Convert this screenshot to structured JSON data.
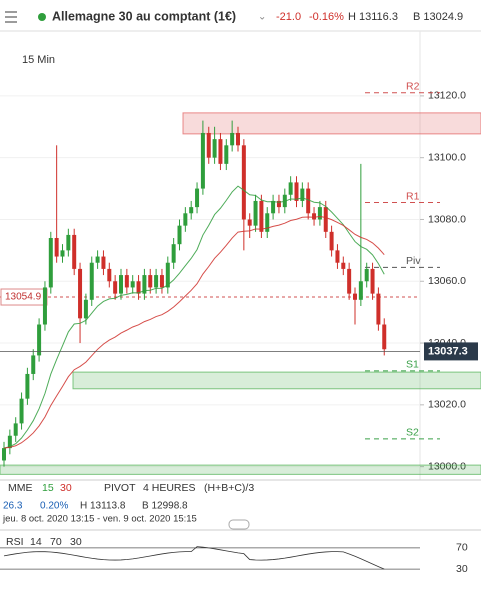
{
  "header": {
    "title": "Allemagne 30 au comptant (1€)",
    "change": "-21.0",
    "change_pct": "-0.16%",
    "high": "H 13116.3",
    "low": "B 13024.9"
  },
  "chart_data": {
    "type": "candlestick",
    "timeframe": "15 Min",
    "ohlc": [
      [
        13002,
        13008,
        13000,
        13006
      ],
      [
        13006,
        13012,
        13004,
        13010
      ],
      [
        13010,
        13016,
        13008,
        13014
      ],
      [
        13014,
        13024,
        13012,
        13022
      ],
      [
        13022,
        13032,
        13020,
        13030
      ],
      [
        13030,
        13038,
        13028,
        13036
      ],
      [
        13036,
        13048,
        13034,
        13046
      ],
      [
        13046,
        13060,
        13044,
        13058
      ],
      [
        13058,
        13076,
        13056,
        13074
      ],
      [
        13074,
        13104,
        13066,
        13068
      ],
      [
        13068,
        13072,
        13066,
        13070
      ],
      [
        13070,
        13077,
        13068,
        13075
      ],
      [
        13075,
        13077,
        13062,
        13064
      ],
      [
        13064,
        13066,
        13040,
        13048
      ],
      [
        13048,
        13056,
        13046,
        13054
      ],
      [
        13054,
        13068,
        13052,
        13066
      ],
      [
        13066,
        13070,
        13064,
        13068
      ],
      [
        13068,
        13070,
        13062,
        13064
      ],
      [
        13064,
        13066,
        13058,
        13060
      ],
      [
        13060,
        13062,
        13054,
        13056
      ],
      [
        13056,
        13064,
        13054,
        13062
      ],
      [
        13062,
        13064,
        13056,
        13058
      ],
      [
        13058,
        13062,
        13056,
        13060
      ],
      [
        13060,
        13062,
        13054,
        13056
      ],
      [
        13056,
        13064,
        13054,
        13062
      ],
      [
        13062,
        13064,
        13056,
        13058
      ],
      [
        13058,
        13064,
        13056,
        13062
      ],
      [
        13062,
        13064,
        13056,
        13058
      ],
      [
        13058,
        13068,
        13056,
        13066
      ],
      [
        13066,
        13074,
        13064,
        13072
      ],
      [
        13072,
        13080,
        13070,
        13078
      ],
      [
        13078,
        13084,
        13076,
        13082
      ],
      [
        13082,
        13086,
        13080,
        13084
      ],
      [
        13084,
        13092,
        13082,
        13090
      ],
      [
        13090,
        13112,
        13088,
        13108
      ],
      [
        13108,
        13110,
        13098,
        13100
      ],
      [
        13100,
        13110,
        13098,
        13106
      ],
      [
        13106,
        13108,
        13096,
        13098
      ],
      [
        13098,
        13106,
        13096,
        13104
      ],
      [
        13104,
        13112,
        13102,
        13108
      ],
      [
        13108,
        13110,
        13102,
        13104
      ],
      [
        13104,
        13106,
        13070,
        13080
      ],
      [
        13080,
        13082,
        13074,
        13078
      ],
      [
        13078,
        13088,
        13076,
        13086
      ],
      [
        13086,
        13088,
        13074,
        13076
      ],
      [
        13076,
        13084,
        13074,
        13082
      ],
      [
        13082,
        13088,
        13080,
        13086
      ],
      [
        13086,
        13088,
        13082,
        13084
      ],
      [
        13084,
        13090,
        13082,
        13088
      ],
      [
        13088,
        13094,
        13086,
        13092
      ],
      [
        13092,
        13094,
        13084,
        13086
      ],
      [
        13086,
        13092,
        13084,
        13090
      ],
      [
        13090,
        13092,
        13080,
        13082
      ],
      [
        13082,
        13084,
        13078,
        13080
      ],
      [
        13080,
        13086,
        13078,
        13084
      ],
      [
        13084,
        13086,
        13074,
        13076
      ],
      [
        13076,
        13078,
        13068,
        13070
      ],
      [
        13070,
        13072,
        13064,
        13066
      ],
      [
        13066,
        13068,
        13062,
        13064
      ],
      [
        13064,
        13066,
        13054,
        13056
      ],
      [
        13056,
        13058,
        13046,
        13054
      ],
      [
        13054,
        13098,
        13052,
        13060
      ],
      [
        13060,
        13066,
        13058,
        13064
      ],
      [
        13064,
        13066,
        13054,
        13056
      ],
      [
        13056,
        13058,
        13044,
        13046
      ],
      [
        13046,
        13048,
        13036,
        13038
      ]
    ],
    "up_color": "#2f9e3c",
    "down_color": "#cf2f2a",
    "ylim": [
      12996,
      13141
    ],
    "yticks": [
      {
        "value": 13000,
        "label": "13000.0"
      },
      {
        "value": 13020,
        "label": "13020.0"
      },
      {
        "value": 13040,
        "label": "13040.0"
      },
      {
        "value": 13060,
        "label": "13060.0"
      },
      {
        "value": 13080,
        "label": "13080.0"
      },
      {
        "value": 13100,
        "label": "13100.0"
      },
      {
        "value": 13120,
        "label": "13120.0"
      }
    ],
    "grid": true,
    "pivots": [
      {
        "name": "R2",
        "value": 13121,
        "color": "#d05050"
      },
      {
        "name": "R1",
        "value": 13085.5,
        "color": "#d05050"
      },
      {
        "name": "Piv",
        "value": 13064.5,
        "color": "#555555"
      },
      {
        "name": "S1",
        "value": 13031,
        "color": "#3aa048"
      },
      {
        "name": "S2",
        "value": 13009,
        "color": "#3aa048"
      }
    ],
    "zones": [
      {
        "range": [
          13107.7,
          13114.5
        ],
        "color": "#e15b5b"
      },
      {
        "range": [
          13025.2,
          13030.6
        ],
        "color": "#4caf50"
      },
      {
        "range": [
          12997.5,
          13000.5
        ],
        "color": "#4caf50"
      }
    ],
    "last_price": 13037.3,
    "ref_price": 13054.9
  },
  "indicators": {
    "mme": "MME",
    "mme_fast": "15",
    "mme_slow": "30",
    "pivot": "PIVOT",
    "pivot_period": "4 HEURES",
    "pivot_formula": "(H+B+C)/3",
    "stat_a": "26.3",
    "stat_b": "0.20%",
    "stat_h": "H 13113.8",
    "stat_l": "B 12998.8",
    "range": "jeu. 8 oct. 2020 13:15 - ven. 9 oct. 2020 15:15"
  },
  "rsi": {
    "label": "RSI",
    "period": "14",
    "upper": "70",
    "lower": "30",
    "ticks": [
      70,
      30
    ],
    "ylim": [
      0,
      100
    ]
  }
}
